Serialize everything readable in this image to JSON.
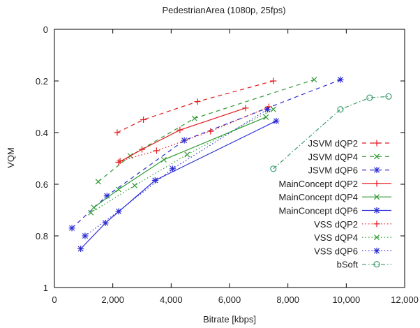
{
  "chart_data": {
    "type": "line",
    "title": "PedestrianArea (1080p, 25fps)",
    "xlabel": "Bitrate [kbps]",
    "ylabel": "VQM",
    "xlim": [
      0,
      12000
    ],
    "ylim": [
      1,
      0
    ],
    "y_inverted": true,
    "xticks": [
      0,
      2000,
      4000,
      6000,
      8000,
      10000,
      12000
    ],
    "xtick_labels": [
      "0",
      "2,000",
      "4,000",
      "6,000",
      "8,000",
      "10,000",
      "12,000"
    ],
    "yticks": [
      0,
      0.2,
      0.4,
      0.6,
      0.8,
      1
    ],
    "ytick_labels": [
      "0",
      "0.2",
      "0.4",
      "0.6",
      "0.8",
      "1"
    ],
    "grid": false,
    "legend_position": "bottom-right",
    "series": [
      {
        "name": "JSVM dQP2",
        "color": "#e41a1c",
        "dash": "6,5",
        "marker": "plus",
        "points": [
          [
            2150,
            0.4
          ],
          [
            3050,
            0.35
          ],
          [
            4900,
            0.28
          ],
          [
            7500,
            0.2
          ]
        ]
      },
      {
        "name": "JSVM dQP4",
        "color": "#2e9a33",
        "dash": "6,5",
        "marker": "cross",
        "points": [
          [
            1500,
            0.59
          ],
          [
            2600,
            0.49
          ],
          [
            4800,
            0.345
          ],
          [
            8900,
            0.195
          ]
        ]
      },
      {
        "name": "JSVM dQP6",
        "color": "#2b2bd6",
        "dash": "6,5",
        "marker": "star",
        "points": [
          [
            600,
            0.77
          ],
          [
            1800,
            0.645
          ],
          [
            4450,
            0.43
          ],
          [
            9800,
            0.195
          ]
        ]
      },
      {
        "name": "MainConcept dQP2",
        "color": "#e41a1c",
        "dash": "",
        "marker": "plus",
        "points": [
          [
            2200,
            0.515
          ],
          [
            3000,
            0.465
          ],
          [
            4300,
            0.39
          ],
          [
            6550,
            0.305
          ]
        ]
      },
      {
        "name": "MainConcept dQP4",
        "color": "#2e9a33",
        "dash": "",
        "marker": "cross",
        "points": [
          [
            1350,
            0.69
          ],
          [
            2200,
            0.62
          ],
          [
            3750,
            0.505
          ],
          [
            7250,
            0.34
          ]
        ]
      },
      {
        "name": "MainConcept dQP6",
        "color": "#2b2bd6",
        "dash": "",
        "marker": "star",
        "points": [
          [
            900,
            0.85
          ],
          [
            1750,
            0.75
          ],
          [
            3450,
            0.585
          ],
          [
            7600,
            0.355
          ]
        ]
      },
      {
        "name": "VSS dQP2",
        "color": "#e41a1c",
        "dash": "1.5,3",
        "marker": "plus",
        "points": [
          [
            2250,
            0.51
          ],
          [
            3500,
            0.47
          ],
          [
            5350,
            0.395
          ],
          [
            7350,
            0.3
          ]
        ]
      },
      {
        "name": "VSS dQP4",
        "color": "#2e9a33",
        "dash": "1.5,3",
        "marker": "cross",
        "points": [
          [
            1250,
            0.71
          ],
          [
            2750,
            0.605
          ],
          [
            4550,
            0.485
          ],
          [
            7500,
            0.31
          ]
        ]
      },
      {
        "name": "VSS dQP6",
        "color": "#2b2bd6",
        "dash": "1.5,3",
        "marker": "star",
        "points": [
          [
            1050,
            0.8
          ],
          [
            2200,
            0.705
          ],
          [
            4050,
            0.54
          ],
          [
            7300,
            0.31
          ]
        ]
      },
      {
        "name": "bSoft",
        "color": "#3a9a6a",
        "dash": "6,3,1.5,3",
        "marker": "circle",
        "points": [
          [
            7500,
            0.54
          ],
          [
            9800,
            0.31
          ],
          [
            10800,
            0.265
          ],
          [
            11450,
            0.26
          ]
        ]
      }
    ]
  }
}
